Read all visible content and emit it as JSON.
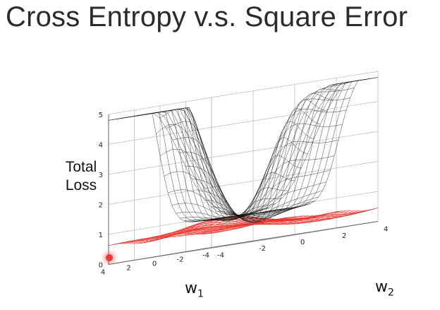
{
  "slide": {
    "title": "Cross Entropy v.s. Square Error"
  },
  "plot": {
    "z_label_line1": "Total",
    "z_label_line2": "Loss",
    "w1_label": "w",
    "w1_sub": "1",
    "w2_label": "w",
    "w2_sub": "2",
    "z_ticks": [
      "0",
      "1",
      "2",
      "3",
      "4",
      "5"
    ],
    "w1_ticks": [
      "4",
      "2",
      "0",
      "-2",
      "-4"
    ],
    "w2_ticks": [
      "-4",
      "-2",
      "0",
      "2",
      "4"
    ],
    "colors": {
      "square_error_surface": "#111111",
      "cross_entropy_surface": "#e8342c",
      "grid": "#b8b8b8",
      "cursor": "#e53935"
    }
  },
  "chart_data": {
    "type": "surface",
    "title": "Cross Entropy v.s. Square Error",
    "xlabel": "w1",
    "ylabel": "w2",
    "zlabel": "Total Loss",
    "xlim": [
      -4,
      4
    ],
    "ylim": [
      -4,
      4
    ],
    "zlim": [
      0,
      5
    ],
    "series": [
      {
        "color": "black"
      },
      {
        "color": "red"
      }
    ]
  }
}
